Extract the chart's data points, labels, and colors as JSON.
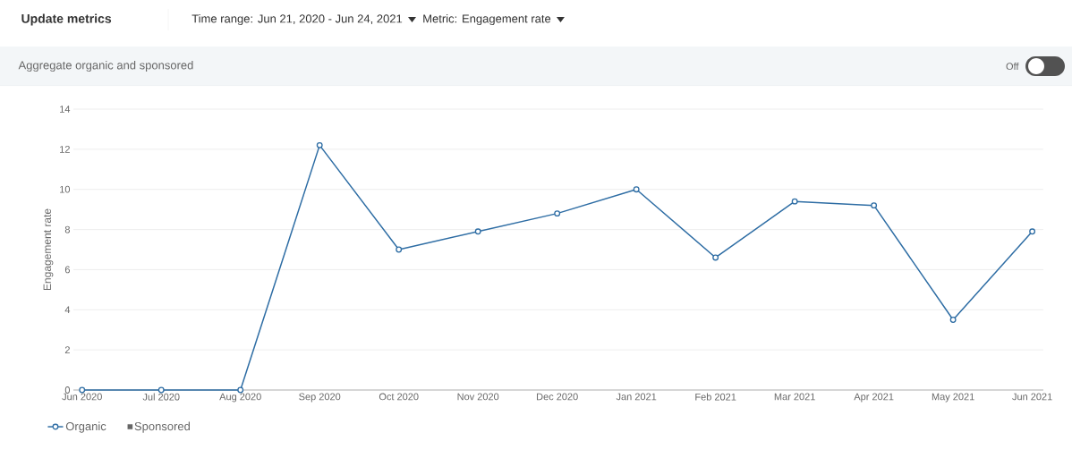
{
  "chart_data": {
    "type": "line",
    "title": "Update metrics",
    "subtitle": "Time range: Jun 21, 2020 - Jun 24, 2021",
    "annotations": [
      "Metric: Engagement rate",
      "Aggregate organic and sponsored",
      "Off"
    ],
    "ylabel": "Engagement rate",
    "categories": [
      "Jun 2020",
      "Jul 2020",
      "Aug 2020",
      "Sep 2020",
      "Oct 2020",
      "Nov 2020",
      "Dec 2020",
      "Jan 2021",
      "Feb 2021",
      "Mar 2021",
      "Apr 2021",
      "May 2021",
      "Jun 2021"
    ],
    "series": [
      {
        "name": "Organic",
        "color": "#2e6da4",
        "values": [
          0,
          0,
          0,
          12.2,
          7.0,
          7.9,
          8.8,
          10.0,
          6.6,
          9.4,
          9.2,
          3.5,
          7.9
        ]
      },
      {
        "name": "Sponsored",
        "color": "#666666",
        "marker": "square",
        "values": [
          null,
          null,
          null,
          null,
          null,
          null,
          null,
          null,
          null,
          null,
          null,
          null,
          null
        ]
      }
    ],
    "ylim": [
      0,
      14
    ],
    "yticks": [
      0,
      2,
      4,
      6,
      8,
      10,
      12,
      14
    ],
    "grid": "y",
    "legend": "bottom left",
    "marker": "circle"
  }
}
